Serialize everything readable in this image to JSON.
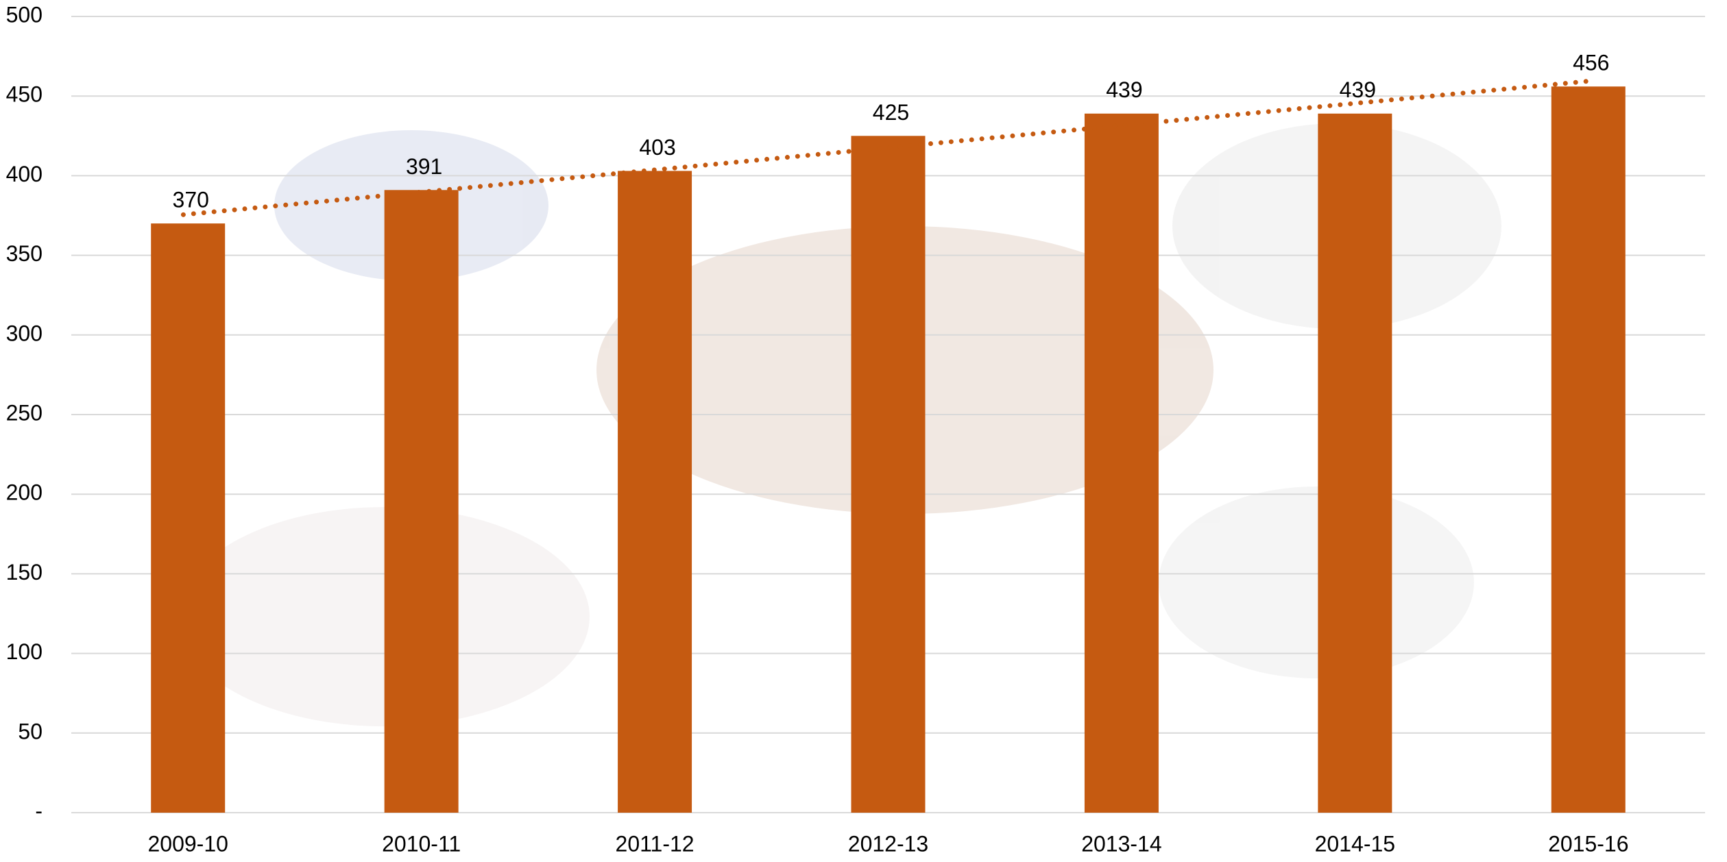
{
  "chart_data": {
    "type": "bar",
    "categories": [
      "2009-10",
      "2010-11",
      "2011-12",
      "2012-13",
      "2013-14",
      "2014-15",
      "2015-16"
    ],
    "values": [
      370,
      391,
      403,
      425,
      439,
      439,
      456
    ],
    "color": "#c55a11",
    "ylim": [
      0,
      500
    ],
    "yticks": [
      {
        "value": 0,
        "label": "-"
      },
      50,
      100,
      150,
      200,
      250,
      300,
      350,
      400,
      450,
      500
    ],
    "grid": true,
    "data_labels": true,
    "trendline": {
      "type": "linear",
      "style": "dotted",
      "color": "#c55a11"
    }
  }
}
